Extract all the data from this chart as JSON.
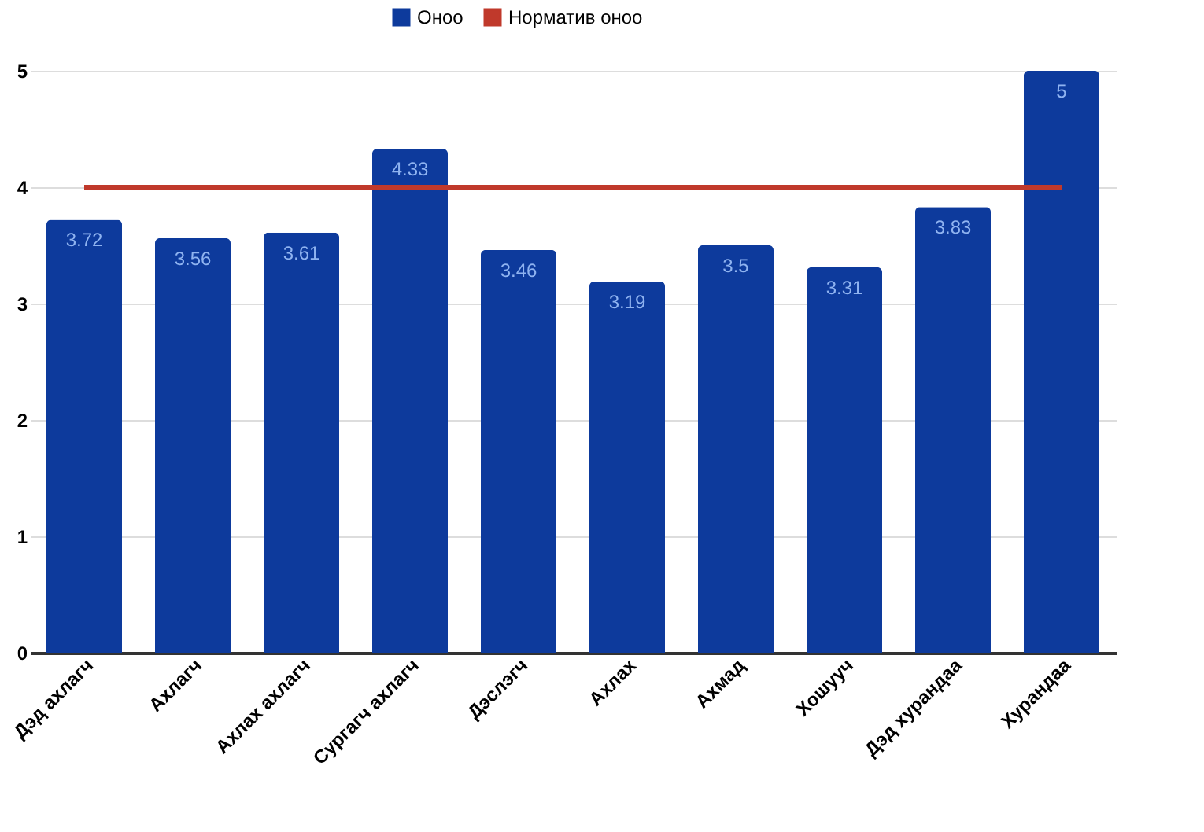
{
  "chart_data": {
    "type": "bar",
    "categories": [
      "Дэд ахлагч",
      "Ахлагч",
      "Ахлах ахлагч",
      "Сургагч ахлагч",
      "Дэслэгч",
      "Ахлах",
      "Ахмад",
      "Хошууч",
      "Дэд хурандаа",
      "Хурандаа"
    ],
    "series": [
      {
        "name": "Оноо",
        "color": "#0d3a9c",
        "values": [
          3.72,
          3.56,
          3.61,
          4.33,
          3.46,
          3.19,
          3.5,
          3.31,
          3.83,
          5
        ],
        "value_labels": [
          "3.72",
          "3.56",
          "3.61",
          "4.33",
          "3.46",
          "3.19",
          "3.5",
          "3.31",
          "3.83",
          "5"
        ]
      },
      {
        "name": "Норматив оноо",
        "type": "line",
        "color": "#c0392b",
        "values": [
          4,
          4,
          4,
          4,
          4,
          4,
          4,
          4,
          4,
          4
        ]
      }
    ],
    "ylim": [
      0,
      5
    ],
    "yticks": [
      0,
      1,
      2,
      3,
      4,
      5
    ],
    "grid": "y",
    "legend": "top"
  }
}
